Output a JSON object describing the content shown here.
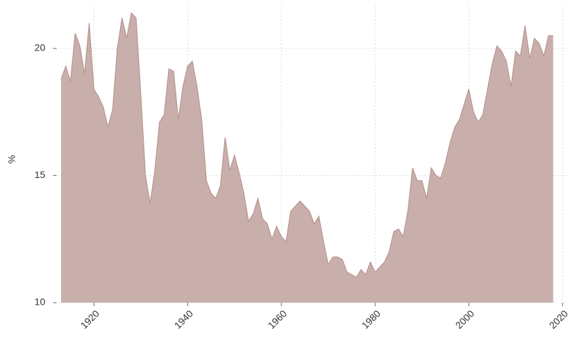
{
  "chart_data": {
    "type": "area",
    "y_label": "%",
    "x": [
      1913,
      1914,
      1915,
      1916,
      1917,
      1918,
      1919,
      1920,
      1921,
      1922,
      1923,
      1924,
      1925,
      1926,
      1927,
      1928,
      1929,
      1930,
      1931,
      1932,
      1933,
      1934,
      1935,
      1936,
      1937,
      1938,
      1939,
      1940,
      1941,
      1942,
      1943,
      1944,
      1945,
      1946,
      1947,
      1948,
      1949,
      1950,
      1951,
      1952,
      1953,
      1954,
      1955,
      1956,
      1957,
      1958,
      1959,
      1960,
      1961,
      1962,
      1963,
      1964,
      1965,
      1966,
      1967,
      1968,
      1969,
      1970,
      1971,
      1972,
      1973,
      1974,
      1975,
      1976,
      1977,
      1978,
      1979,
      1980,
      1981,
      1982,
      1983,
      1984,
      1985,
      1986,
      1987,
      1988,
      1989,
      1990,
      1991,
      1992,
      1993,
      1994,
      1995,
      1996,
      1997,
      1998,
      1999,
      2000,
      2001,
      2002,
      2003,
      2004,
      2005,
      2006,
      2007,
      2008,
      2009,
      2010,
      2011,
      2012,
      2013,
      2014,
      2015,
      2016,
      2017,
      2018
    ],
    "values": [
      18.8,
      19.3,
      18.7,
      20.6,
      20.1,
      19.0,
      21.0,
      18.4,
      18.1,
      17.7,
      16.9,
      17.6,
      20.0,
      21.2,
      20.4,
      21.4,
      21.2,
      18.2,
      15.0,
      13.9,
      15.2,
      17.1,
      17.4,
      19.2,
      19.1,
      17.2,
      18.5,
      19.3,
      19.5,
      18.5,
      17.2,
      14.8,
      14.3,
      14.1,
      14.6,
      16.5,
      15.2,
      15.8,
      15.1,
      14.3,
      13.2,
      13.5,
      14.1,
      13.3,
      13.1,
      12.5,
      13.0,
      12.6,
      12.4,
      13.6,
      13.8,
      14.0,
      13.8,
      13.6,
      13.1,
      13.4,
      12.4,
      11.5,
      11.8,
      11.8,
      11.7,
      11.2,
      11.1,
      11.0,
      11.3,
      11.1,
      11.6,
      11.2,
      11.4,
      11.6,
      12.0,
      12.8,
      12.9,
      12.6,
      13.6,
      15.3,
      14.8,
      14.8,
      14.1,
      15.3,
      15.0,
      14.9,
      15.5,
      16.3,
      16.9,
      17.2,
      17.8,
      18.4,
      17.5,
      17.1,
      17.4,
      18.4,
      19.4,
      20.1,
      19.9,
      19.5,
      18.5,
      19.9,
      19.7,
      20.9,
      19.6,
      20.4,
      20.2,
      19.7,
      20.5,
      20.5
    ],
    "color": "#c9afab",
    "line_color": "#b8948f",
    "xlim": [
      1912,
      2021
    ],
    "ylim": [
      10,
      21.7
    ],
    "xticks": [
      1920,
      1940,
      1960,
      1980,
      2000,
      2020
    ],
    "yticks": [
      10,
      15,
      20
    ],
    "grid": true
  }
}
